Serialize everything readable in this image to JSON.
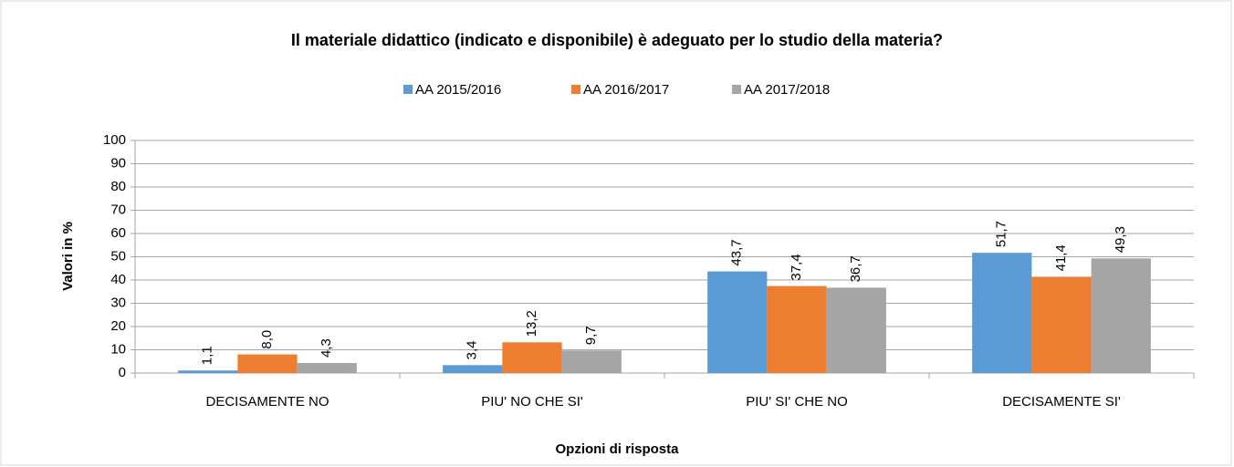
{
  "chart_data": {
    "type": "bar",
    "title": "Il materiale didattico (indicato e disponibile) è adeguato per lo studio della materia?",
    "xlabel": "Opzioni di risposta",
    "ylabel": "Valori in %",
    "categories": [
      "DECISAMENTE NO",
      "PIU' NO CHE SI'",
      "PIU' SI' CHE NO",
      "DECISAMENTE SI'"
    ],
    "series": [
      {
        "name": "AA 2015/2016",
        "color": "#5b9bd5",
        "values": [
          1.1,
          3.4,
          43.7,
          51.7
        ],
        "value_labels": [
          "1,1",
          "3,4",
          "43,7",
          "51,7"
        ]
      },
      {
        "name": "AA 2016/2017",
        "color": "#ed7d31",
        "values": [
          8.0,
          13.2,
          37.4,
          41.4
        ],
        "value_labels": [
          "8,0",
          "13,2",
          "37,4",
          "41,4"
        ]
      },
      {
        "name": "AA 2017/2018",
        "color": "#a5a5a5",
        "values": [
          4.3,
          9.7,
          36.7,
          49.3
        ],
        "value_labels": [
          "4,3",
          "9,7",
          "36,7",
          "49,3"
        ]
      }
    ],
    "ylim": [
      0,
      100
    ],
    "yticks": [
      0,
      10,
      20,
      30,
      40,
      50,
      60,
      70,
      80,
      90,
      100
    ],
    "grid": true,
    "legend": "top"
  }
}
